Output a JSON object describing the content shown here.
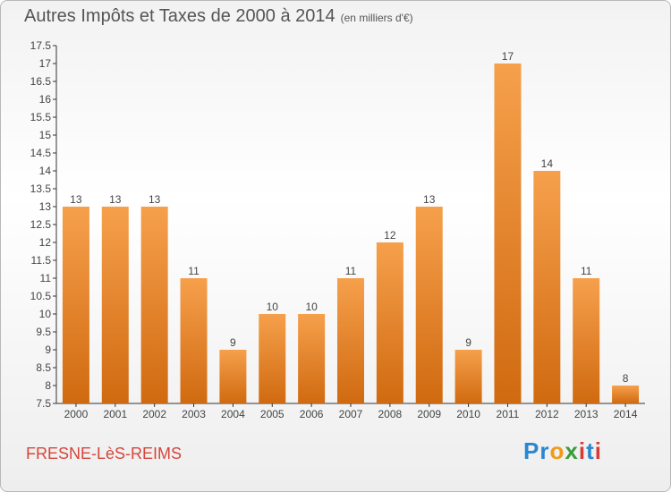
{
  "title": "Autres Impôts et Taxes de 2000 à 2014",
  "unit": "(en milliers d'€)",
  "place": "FRESNE-LèS-REIMS",
  "logo": {
    "letters": [
      "P",
      "r",
      "o",
      "x",
      "i",
      "t",
      "i"
    ],
    "colors": [
      "#2a87cf",
      "#2a87cf",
      "#f29a17",
      "#3a9c3a",
      "#d43c35",
      "#2a87cf",
      "#d43c35"
    ]
  },
  "colors": {
    "bar_top": "#f6a04c",
    "bar_bottom": "#d06a10",
    "axis": "#333333"
  },
  "chart_data": {
    "type": "bar",
    "categories": [
      "2000",
      "2001",
      "2002",
      "2003",
      "2004",
      "2005",
      "2006",
      "2007",
      "2008",
      "2009",
      "2010",
      "2011",
      "2012",
      "2013",
      "2014"
    ],
    "values": [
      13,
      13,
      13,
      11,
      9,
      10,
      10,
      11,
      12,
      13,
      9,
      17,
      14,
      11,
      8
    ],
    "ylim": [
      7.5,
      17.5
    ],
    "yticks": [
      "7.5",
      "8",
      "8.5",
      "9",
      "9.5",
      "10",
      "10.5",
      "11",
      "11.5",
      "12",
      "12.5",
      "13",
      "13.5",
      "14",
      "14.5",
      "15",
      "15.5",
      "16",
      "16.5",
      "17",
      "17.5"
    ],
    "grid": false,
    "legend": "none"
  }
}
